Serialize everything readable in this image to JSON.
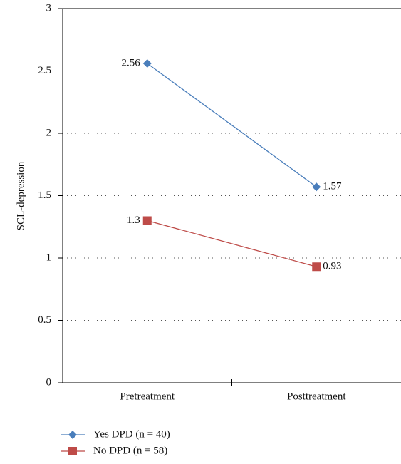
{
  "chart_data": {
    "type": "line",
    "y_label": "SCL-depression",
    "categories": [
      "Pretreatment",
      "Posttreatment"
    ],
    "series": [
      {
        "name": "Yes DPD (n = 40)",
        "color": "#4a7ebb",
        "marker": "diamond",
        "values": [
          2.56,
          1.57
        ]
      },
      {
        "name": "No DPD (n = 58)",
        "color": "#be4b48",
        "marker": "square",
        "values": [
          1.3,
          0.93
        ]
      }
    ],
    "ylim": [
      0,
      3
    ],
    "yticks": [
      0,
      0.5,
      1,
      1.5,
      2,
      2.5,
      3
    ],
    "grid": true,
    "legend": "bottom"
  }
}
